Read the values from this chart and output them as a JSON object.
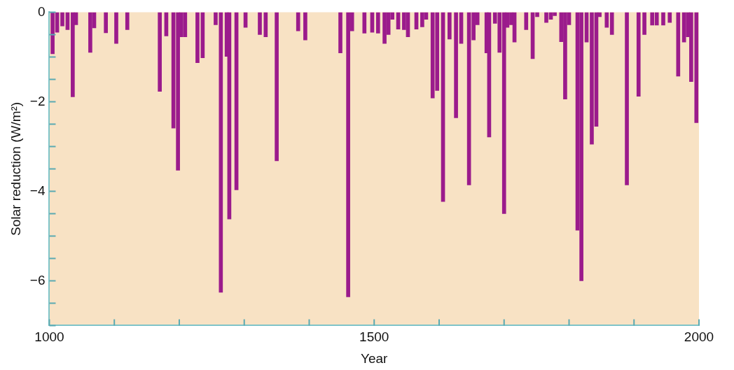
{
  "chart_data": {
    "type": "bar",
    "xlabel": "Year",
    "ylabel": "Solar reduction (W/m²)",
    "x": [
      1005,
      1012,
      1020,
      1028,
      1036,
      1041,
      1063,
      1069,
      1087,
      1103,
      1120,
      1170,
      1180,
      1191,
      1198,
      1203,
      1209,
      1228,
      1236,
      1256,
      1264,
      1273,
      1277,
      1288,
      1302,
      1324,
      1333,
      1350,
      1383,
      1394,
      1448,
      1460,
      1466,
      1485,
      1497,
      1506,
      1516,
      1522,
      1528,
      1537,
      1546,
      1552,
      1565,
      1574,
      1580,
      1590,
      1597,
      1606,
      1616,
      1626,
      1634,
      1646,
      1653,
      1659,
      1673,
      1677,
      1686,
      1693,
      1700,
      1705,
      1711,
      1716,
      1734,
      1744,
      1751,
      1765,
      1772,
      1778,
      1788,
      1794,
      1800,
      1813,
      1819,
      1827,
      1835,
      1842,
      1847,
      1858,
      1866,
      1889,
      1907,
      1916,
      1928,
      1935,
      1945,
      1955,
      1968,
      1977,
      1983,
      1988,
      1996
    ],
    "values": [
      -0.93,
      -0.45,
      -0.31,
      -0.39,
      -1.89,
      -0.28,
      -0.9,
      -0.35,
      -0.46,
      -0.7,
      -0.39,
      -1.77,
      -0.53,
      -2.59,
      -3.53,
      -0.55,
      -0.55,
      -1.13,
      -1.02,
      -0.28,
      -6.26,
      -0.99,
      -4.62,
      -3.97,
      -0.34,
      -0.5,
      -0.55,
      -3.32,
      -0.42,
      -0.62,
      -0.91,
      -6.36,
      -0.42,
      -0.47,
      -0.45,
      -0.47,
      -0.7,
      -0.5,
      -0.16,
      -0.38,
      -0.39,
      -0.55,
      -0.38,
      -0.33,
      -0.16,
      -1.92,
      -1.75,
      -4.23,
      -0.6,
      -2.36,
      -0.7,
      -3.86,
      -0.62,
      -0.28,
      -0.91,
      -2.79,
      -0.25,
      -0.9,
      -4.5,
      -0.34,
      -0.28,
      -0.67,
      -0.39,
      -1.04,
      -0.1,
      -0.23,
      -0.16,
      -0.08,
      -0.66,
      -1.94,
      -0.28,
      -4.87,
      -6.0,
      -0.67,
      -2.95,
      -2.55,
      -0.1,
      -0.34,
      -0.5,
      -3.86,
      -1.88,
      -0.5,
      -0.29,
      -0.29,
      -0.29,
      -0.23,
      -1.43,
      -0.67,
      -0.55,
      -1.55,
      -2.47
    ],
    "color": "#9b1b8c",
    "xlim": [
      1000,
      2000
    ],
    "xticks": [
      1000,
      {
        "value": 1100,
        "label": null
      },
      {
        "value": 1200,
        "label": null
      },
      {
        "value": 1300,
        "label": null
      },
      {
        "value": 1400,
        "label": null
      },
      1500,
      {
        "value": 1600,
        "label": null
      },
      {
        "value": 1700,
        "label": null
      },
      {
        "value": 1800,
        "label": null
      },
      {
        "value": 1900,
        "label": null
      },
      2000
    ],
    "ylim": [
      -7,
      0
    ],
    "yticks": [
      0,
      {
        "value": -0.5,
        "label": null
      },
      {
        "value": -1,
        "label": null
      },
      {
        "value": -1.5,
        "label": null
      },
      -2,
      {
        "value": -2.5,
        "label": null
      },
      {
        "value": -3,
        "label": null
      },
      {
        "value": -3.5,
        "label": null
      },
      -4,
      {
        "value": -4.5,
        "label": null
      },
      {
        "value": -5,
        "label": null
      },
      {
        "value": -5.5,
        "label": null
      },
      -6,
      {
        "value": -6.5,
        "label": null
      },
      {
        "value": -7,
        "label": null
      }
    ],
    "grid": false,
    "legend": false
  }
}
